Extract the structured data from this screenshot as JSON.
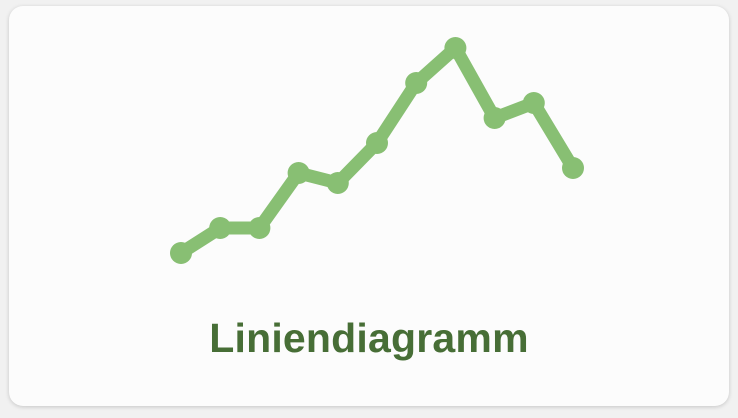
{
  "tile": {
    "label": "Liniendiagramm",
    "label_color": "#476e36",
    "icon": "line-chart-icon"
  },
  "colors": {
    "line": "#88bf73",
    "background": "#fcfcfc"
  },
  "chart_data": {
    "type": "line",
    "series": [
      {
        "values": [
          2,
          7,
          7,
          18,
          16,
          24,
          36,
          43,
          29,
          32,
          19
        ]
      }
    ],
    "x": [
      1,
      2,
      3,
      4,
      5,
      6,
      7,
      8,
      9,
      10,
      11
    ],
    "ylim": [
      0,
      45
    ],
    "grid": false,
    "axes_visible": false
  }
}
